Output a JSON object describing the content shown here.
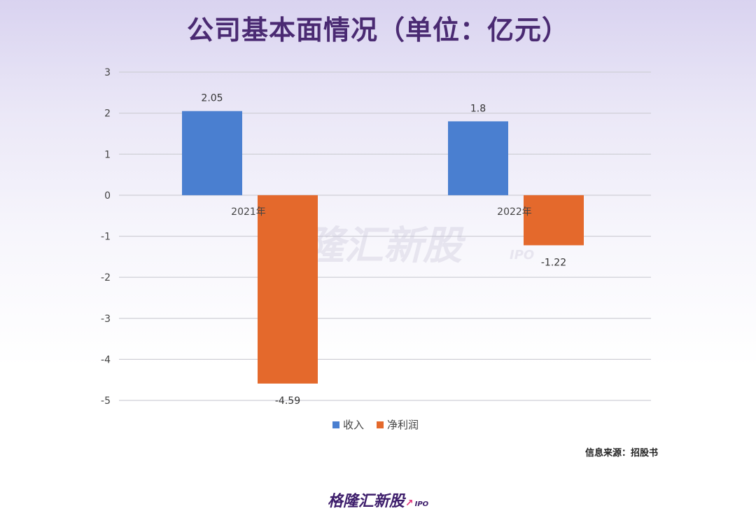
{
  "title": "公司基本面情况（单位：亿元）",
  "watermark": {
    "text": "格隆汇新股",
    "suffix": "IPO"
  },
  "source": "信息来源：招股书",
  "brand": {
    "text": "格隆汇新股",
    "suffix": "IPO"
  },
  "chart_data": {
    "type": "bar",
    "categories": [
      "2021年",
      "2022年"
    ],
    "series": [
      {
        "name": "收入",
        "values": [
          2.05,
          1.8
        ],
        "labels": [
          "2.05",
          "1.8"
        ],
        "color": "#4a7fd0"
      },
      {
        "name": "净利润",
        "values": [
          -4.59,
          -1.22
        ],
        "labels": [
          "-4.59",
          "-1.22"
        ],
        "color": "#e4692c"
      }
    ],
    "ylim": [
      -5,
      3
    ],
    "yticks": [
      3,
      2,
      1,
      0,
      -1,
      -2,
      -3,
      -4,
      -5
    ],
    "grid": true,
    "legend_position": "bottom"
  }
}
